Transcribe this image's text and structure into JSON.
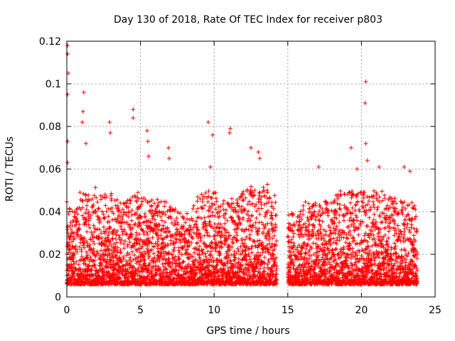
{
  "chart_data": {
    "type": "scatter",
    "title": "Day 130 of 2018, Rate Of TEC Index for receiver p803",
    "xlabel": "GPS time / hours",
    "ylabel": "ROTI / TECUs",
    "xlim": [
      0,
      25
    ],
    "ylim": [
      0,
      0.12
    ],
    "xticks": [
      0,
      5,
      10,
      15,
      20,
      25
    ],
    "xtick_labels": [
      "0",
      "5",
      "10",
      "15",
      "20",
      "25"
    ],
    "yticks": [
      0,
      0.02,
      0.04,
      0.06,
      0.08,
      0.1,
      0.12
    ],
    "ytick_labels": [
      "0",
      "0.02",
      "0.04",
      "0.06",
      "0.08",
      "0.1",
      "0.12"
    ],
    "grid": true,
    "marker": "+",
    "series_color": "#ff0000",
    "data_gap_hours": [
      14.25,
      15.0
    ],
    "sampling_note": "dense noisy samples, roughly 0.005-0.04 TECU base level",
    "envelope": {
      "x": [
        0,
        0.5,
        1,
        1.5,
        2,
        2.5,
        3,
        3.5,
        4,
        4.5,
        5,
        5.5,
        6,
        6.5,
        7,
        7.5,
        8,
        8.5,
        9,
        9.5,
        10,
        10.5,
        11,
        11.5,
        12,
        12.5,
        13,
        13.5,
        14,
        15,
        15.5,
        16,
        16.5,
        17,
        17.5,
        18,
        18.5,
        19,
        19.5,
        20,
        20.5,
        21,
        21.5,
        22,
        22.5,
        23,
        23.5
      ],
      "typical_max": [
        0.045,
        0.04,
        0.052,
        0.05,
        0.052,
        0.048,
        0.05,
        0.045,
        0.045,
        0.048,
        0.05,
        0.045,
        0.047,
        0.045,
        0.045,
        0.04,
        0.038,
        0.042,
        0.05,
        0.05,
        0.05,
        0.045,
        0.047,
        0.045,
        0.05,
        0.052,
        0.05,
        0.055,
        0.05,
        0.04,
        0.04,
        0.045,
        0.045,
        0.045,
        0.045,
        0.045,
        0.05,
        0.05,
        0.05,
        0.05,
        0.05,
        0.05,
        0.05,
        0.048,
        0.045,
        0.045,
        0.045
      ]
    },
    "peaks": [
      {
        "x": 0.05,
        "y": 0.118
      },
      {
        "x": 0.05,
        "y": 0.114
      },
      {
        "x": 0.1,
        "y": 0.105
      },
      {
        "x": 0.05,
        "y": 0.095
      },
      {
        "x": 0.05,
        "y": 0.073
      },
      {
        "x": 0.05,
        "y": 0.063
      },
      {
        "x": 1.15,
        "y": 0.096
      },
      {
        "x": 1.1,
        "y": 0.087
      },
      {
        "x": 1.05,
        "y": 0.082
      },
      {
        "x": 1.3,
        "y": 0.072
      },
      {
        "x": 2.9,
        "y": 0.082
      },
      {
        "x": 2.95,
        "y": 0.077
      },
      {
        "x": 4.5,
        "y": 0.088
      },
      {
        "x": 4.5,
        "y": 0.084
      },
      {
        "x": 5.45,
        "y": 0.078
      },
      {
        "x": 5.5,
        "y": 0.073
      },
      {
        "x": 5.55,
        "y": 0.066
      },
      {
        "x": 6.9,
        "y": 0.07
      },
      {
        "x": 6.95,
        "y": 0.065
      },
      {
        "x": 9.6,
        "y": 0.082
      },
      {
        "x": 9.9,
        "y": 0.076
      },
      {
        "x": 9.75,
        "y": 0.061
      },
      {
        "x": 11.1,
        "y": 0.079
      },
      {
        "x": 11.05,
        "y": 0.077
      },
      {
        "x": 12.5,
        "y": 0.07
      },
      {
        "x": 13.0,
        "y": 0.068
      },
      {
        "x": 13.1,
        "y": 0.065
      },
      {
        "x": 17.1,
        "y": 0.061
      },
      {
        "x": 19.3,
        "y": 0.07
      },
      {
        "x": 19.7,
        "y": 0.06
      },
      {
        "x": 20.3,
        "y": 0.101
      },
      {
        "x": 20.25,
        "y": 0.091
      },
      {
        "x": 20.3,
        "y": 0.072
      },
      {
        "x": 20.4,
        "y": 0.064
      },
      {
        "x": 21.2,
        "y": 0.061
      },
      {
        "x": 22.9,
        "y": 0.061
      },
      {
        "x": 23.3,
        "y": 0.059
      }
    ]
  }
}
